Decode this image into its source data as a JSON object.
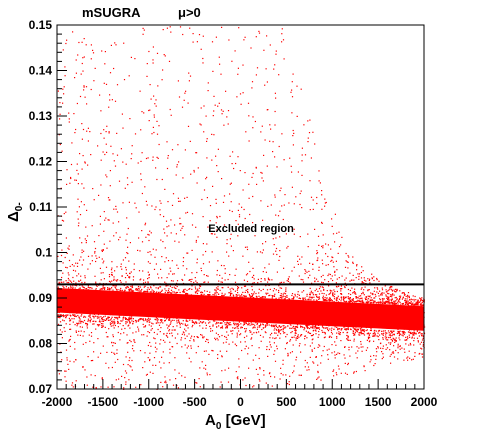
{
  "chart_data": {
    "type": "scatter",
    "title_left": "mSUGRA",
    "title_right": "μ>0",
    "xlabel_main": "A",
    "xlabel_sub": "0",
    "xlabel_rest": " [GeV]",
    "ylabel_main": "Δ",
    "ylabel_sub": "0-",
    "xlim": [
      -2000,
      2000
    ],
    "ylim": [
      0.07,
      0.15
    ],
    "xticks": [
      -2000,
      -1500,
      -1000,
      -500,
      0,
      500,
      1000,
      1500,
      2000
    ],
    "xtick_labels": [
      "-2000",
      "-1500",
      "-1000",
      "-500",
      "0",
      "500",
      "1000",
      "1500",
      "2000"
    ],
    "yticks": [
      0.07,
      0.08,
      0.09,
      0.1,
      0.11,
      0.12,
      0.13,
      0.14,
      0.15
    ],
    "ytick_labels": [
      "0.07",
      "0.08",
      "0.09",
      "0.1",
      "0.11",
      "0.12",
      "0.13",
      "0.14",
      "0.15"
    ],
    "series": [
      {
        "color": "#ff0000",
        "band_center_start": 0.0895,
        "band_center_end": 0.0855,
        "band_core_halfwidth": 0.003,
        "upper_edge_points": [
          {
            "x": -2000,
            "y": 0.15
          },
          {
            "x": 500,
            "y": 0.15
          },
          {
            "x": 700,
            "y": 0.135
          },
          {
            "x": 900,
            "y": 0.115
          },
          {
            "x": 1200,
            "y": 0.1
          },
          {
            "x": 1500,
            "y": 0.094
          },
          {
            "x": 2000,
            "y": 0.09
          }
        ],
        "lower_edge_points": [
          {
            "x": -2000,
            "y": 0.07
          },
          {
            "x": 0,
            "y": 0.07
          },
          {
            "x": 1000,
            "y": 0.072
          },
          {
            "x": 1500,
            "y": 0.075
          },
          {
            "x": 2000,
            "y": 0.077
          }
        ]
      }
    ],
    "reference_line": {
      "y": 0.093,
      "color": "#000000"
    },
    "annotation": {
      "text": "Excluded region",
      "x": 150,
      "y": 0.1045
    }
  }
}
